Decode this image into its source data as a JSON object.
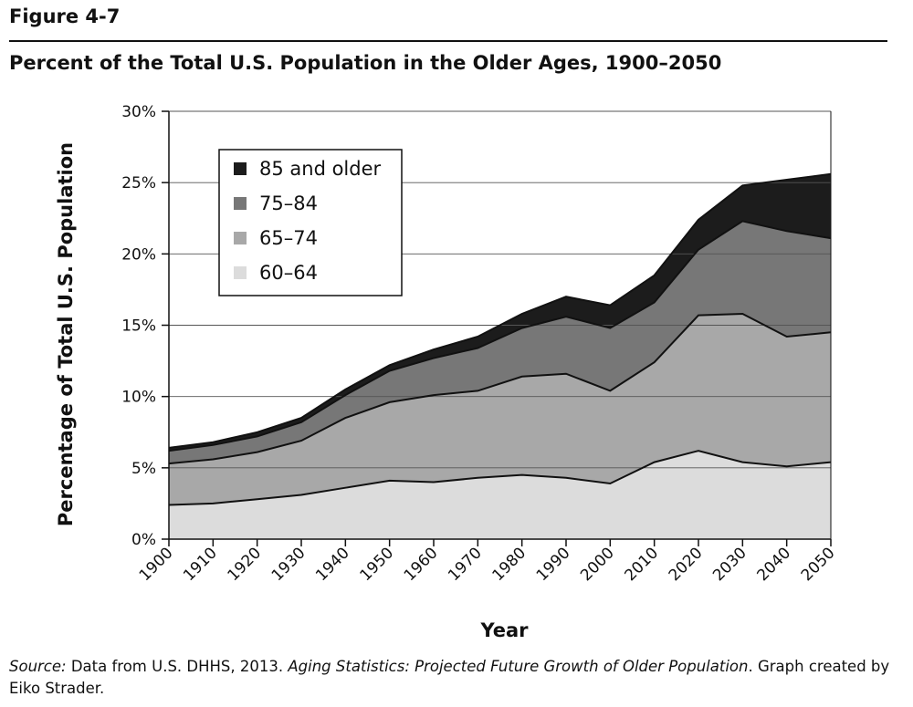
{
  "figure_label": "Figure 4-7",
  "figure_title": "Percent of the Total U.S. Population in the Older Ages, 1900–2050",
  "source": {
    "prefix": "Source:",
    "text1": " Data from U.S. DHHS, 2013. ",
    "title": "Aging Statistics: Projected Future Growth of Older Population",
    "text2": ". Graph created by Eiko Strader."
  },
  "colors": {
    "60-64": "#dcdcdc",
    "65-74": "#a8a8a8",
    "75-84": "#777777",
    "85+": "#1c1c1c"
  },
  "chart_data": {
    "type": "area",
    "stacked": true,
    "title": "Percent of the Total U.S. Population in the Older Ages, 1900–2050",
    "xlabel": "Year",
    "ylabel": "Percentage of Total U.S. Population",
    "x": [
      1900,
      1910,
      1920,
      1930,
      1940,
      1950,
      1960,
      1970,
      1980,
      1990,
      2000,
      2010,
      2020,
      2030,
      2040,
      2050
    ],
    "y_ticks": [
      "0%",
      "5%",
      "10%",
      "15%",
      "20%",
      "25%",
      "30%"
    ],
    "ylim": [
      0,
      30
    ],
    "grid": true,
    "legend_position": "top-left",
    "legend_order": [
      "85 and older",
      "75–84",
      "65–74",
      "60–64"
    ],
    "series": [
      {
        "name": "60–64",
        "color": "#dcdcdc",
        "values": [
          2.4,
          2.5,
          2.8,
          3.1,
          3.6,
          4.1,
          4.0,
          4.3,
          4.5,
          4.3,
          3.9,
          5.4,
          6.2,
          5.4,
          5.1,
          5.4
        ]
      },
      {
        "name": "65–74",
        "color": "#a8a8a8",
        "values": [
          2.9,
          3.1,
          3.3,
          3.8,
          4.9,
          5.5,
          6.1,
          6.1,
          6.9,
          7.3,
          6.5,
          7.0,
          9.5,
          10.4,
          9.1,
          9.1
        ]
      },
      {
        "name": "75–84",
        "color": "#777777",
        "values": [
          0.9,
          1.0,
          1.1,
          1.3,
          1.6,
          2.2,
          2.6,
          3.0,
          3.4,
          4.0,
          4.4,
          4.2,
          4.6,
          6.5,
          7.4,
          6.6
        ]
      },
      {
        "name": "85 and older",
        "color": "#1c1c1c",
        "values": [
          0.2,
          0.2,
          0.3,
          0.3,
          0.4,
          0.4,
          0.6,
          0.8,
          1.0,
          1.4,
          1.6,
          1.9,
          2.1,
          2.5,
          3.6,
          4.5
        ]
      }
    ]
  }
}
